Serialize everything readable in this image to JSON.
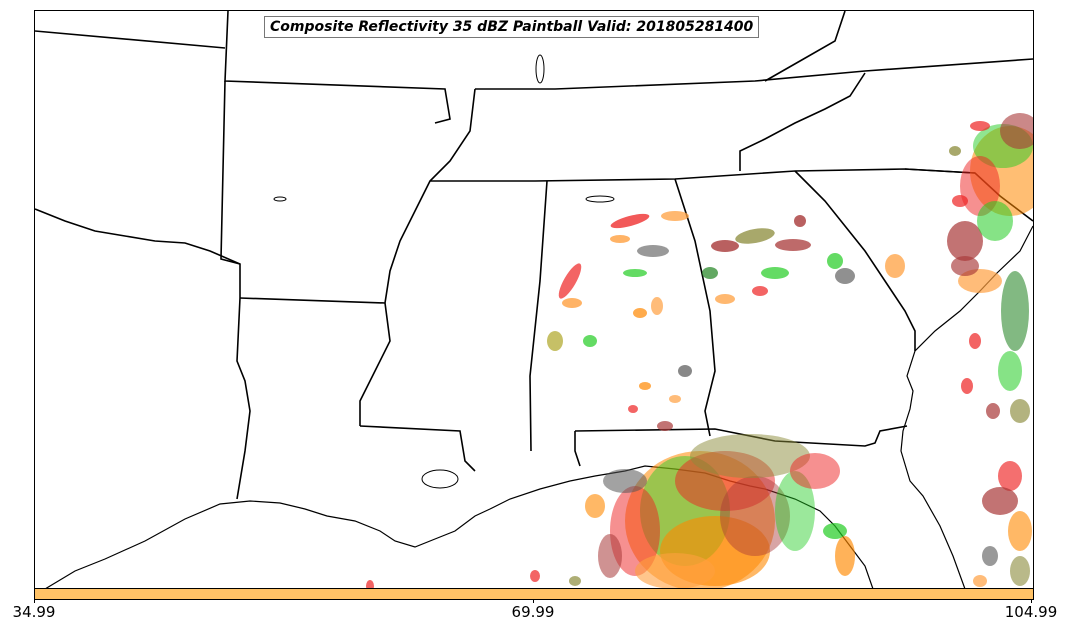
{
  "title": "Composite Reflectivity 35 dBZ Paintball Valid: 201805281400",
  "colorbar": {
    "color": "#FFC266",
    "ticks": [
      "34.99",
      "69.99",
      "104.99"
    ]
  },
  "paintball_colors": {
    "red": "#EE2222",
    "orange": "#FF8800",
    "light_orange": "#FFA040",
    "green": "#22CC22",
    "dark_green": "#2E8B2E",
    "olive": "#8B8B3A",
    "brown": "#A83838",
    "gray": "#555555",
    "khaki": "#B8B040"
  }
}
